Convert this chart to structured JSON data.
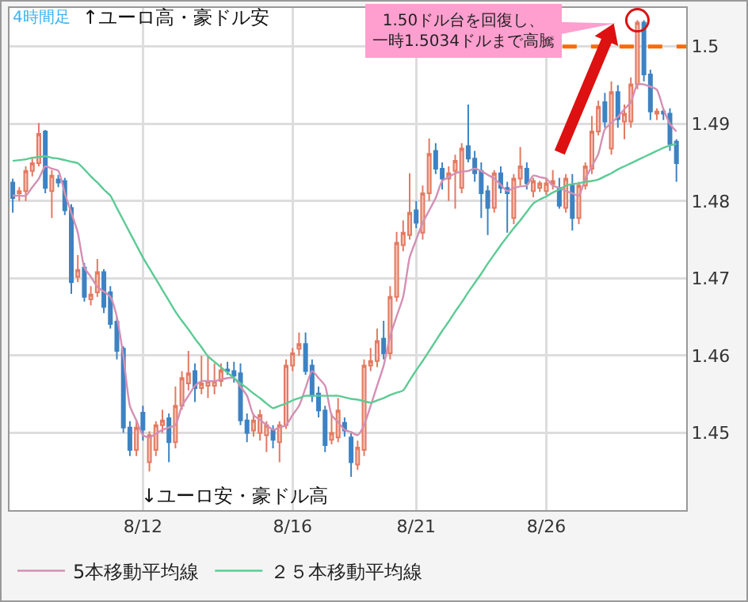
{
  "chart_data": {
    "type": "candlestick",
    "categories": [
      null,
      null,
      null,
      null,
      null,
      null,
      null,
      null,
      null,
      null,
      null,
      null,
      null,
      null,
      null,
      null,
      null,
      null,
      null,
      null,
      "8/12",
      null,
      null,
      null,
      null,
      null,
      null,
      null,
      null,
      null,
      null,
      null,
      null,
      null,
      null,
      null,
      null,
      null,
      null,
      null,
      null,
      null,
      null,
      "8/16",
      null,
      null,
      null,
      null,
      null,
      null,
      null,
      null,
      null,
      null,
      null,
      null,
      null,
      null,
      null,
      null,
      null,
      null,
      "8/21",
      null,
      null,
      null,
      null,
      null,
      null,
      null,
      null,
      null,
      null,
      null,
      null,
      null,
      null,
      null,
      null,
      null,
      null,
      null,
      "8/26",
      null,
      null,
      null,
      null,
      null,
      null,
      null,
      null,
      null,
      null,
      null,
      null,
      null,
      null,
      null,
      null,
      null,
      null,
      null,
      null
    ],
    "ohlc": [
      [
        1.4824,
        1.4829,
        1.4785,
        1.4804
      ],
      [
        1.481,
        1.4818,
        1.48,
        1.4813
      ],
      [
        1.4813,
        1.4845,
        1.48,
        1.4839
      ],
      [
        1.4839,
        1.4855,
        1.4832,
        1.4849
      ],
      [
        1.4849,
        1.4901,
        1.4845,
        1.4887
      ],
      [
        1.489,
        1.4892,
        1.481,
        1.4817
      ],
      [
        1.4813,
        1.484,
        1.4778,
        1.4833
      ],
      [
        1.4828,
        1.4834,
        1.4818,
        1.4824
      ],
      [
        1.4826,
        1.483,
        1.4782,
        1.4788
      ],
      [
        1.4791,
        1.4796,
        1.468,
        1.4695
      ],
      [
        1.4702,
        1.473,
        1.4695,
        1.4711
      ],
      [
        1.4714,
        1.472,
        1.467,
        1.4676
      ],
      [
        1.4673,
        1.469,
        1.4665,
        1.4679
      ],
      [
        1.4682,
        1.4725,
        1.4676,
        1.4708
      ],
      [
        1.4708,
        1.4712,
        1.4655,
        1.4663
      ],
      [
        1.4682,
        1.469,
        1.4635,
        1.4641
      ],
      [
        1.4644,
        1.465,
        1.4595,
        1.4606
      ],
      [
        1.4609,
        1.4612,
        1.45,
        1.4507
      ],
      [
        1.4507,
        1.4515,
        1.447,
        1.4478
      ],
      [
        1.4478,
        1.4515,
        1.447,
        1.4507
      ],
      [
        1.4526,
        1.4535,
        1.449,
        1.4504
      ],
      [
        1.4462,
        1.4502,
        1.445,
        1.4497
      ],
      [
        1.4478,
        1.4515,
        1.447,
        1.451
      ],
      [
        1.451,
        1.453,
        1.45,
        1.4516
      ],
      [
        1.4519,
        1.4525,
        1.4462,
        1.4488
      ],
      [
        1.4488,
        1.456,
        1.448,
        1.4535
      ],
      [
        1.4535,
        1.458,
        1.453,
        1.4571
      ],
      [
        1.4564,
        1.4606,
        1.4555,
        1.4577
      ],
      [
        1.458,
        1.459,
        1.454,
        1.4558
      ],
      [
        1.4558,
        1.46,
        1.455,
        1.4564
      ],
      [
        1.4561,
        1.46,
        1.4545,
        1.4567
      ],
      [
        1.4561,
        1.459,
        1.455,
        1.4567
      ],
      [
        1.4567,
        1.459,
        1.456,
        1.4581
      ],
      [
        1.4582,
        1.4592,
        1.4575,
        1.458
      ],
      [
        1.458,
        1.4592,
        1.4565,
        1.4574
      ],
      [
        1.4577,
        1.459,
        1.451,
        1.4516
      ],
      [
        1.4516,
        1.4525,
        1.4488,
        1.45
      ],
      [
        1.4503,
        1.4525,
        1.4495,
        1.4516
      ],
      [
        1.45,
        1.453,
        1.449,
        1.4523
      ],
      [
        1.4497,
        1.4515,
        1.4475,
        1.451
      ],
      [
        1.4504,
        1.451,
        1.448,
        1.4491
      ],
      [
        1.4488,
        1.4515,
        1.4462,
        1.451
      ],
      [
        1.451,
        1.4595,
        1.4505,
        1.4587
      ],
      [
        1.4587,
        1.461,
        1.458,
        1.4603
      ],
      [
        1.4609,
        1.463,
        1.46,
        1.4615
      ],
      [
        1.4615,
        1.463,
        1.4575,
        1.458
      ],
      [
        1.4587,
        1.4595,
        1.454,
        1.4548
      ],
      [
        1.4551,
        1.456,
        1.452,
        1.4529
      ],
      [
        1.4529,
        1.4535,
        1.4475,
        1.4484
      ],
      [
        1.4491,
        1.4525,
        1.4485,
        1.45
      ],
      [
        1.4494,
        1.4545,
        1.4488,
        1.4529
      ],
      [
        1.4513,
        1.452,
        1.4495,
        1.4503
      ],
      [
        1.4494,
        1.45,
        1.4443,
        1.4462
      ],
      [
        1.4459,
        1.449,
        1.4452,
        1.4481
      ],
      [
        1.4478,
        1.4595,
        1.447,
        1.4587
      ],
      [
        1.4587,
        1.461,
        1.458,
        1.4593
      ],
      [
        1.4593,
        1.4635,
        1.4585,
        1.4619
      ],
      [
        1.4622,
        1.4645,
        1.4595,
        1.4603
      ],
      [
        1.4603,
        1.469,
        1.4595,
        1.4676
      ],
      [
        1.4676,
        1.476,
        1.467,
        1.4746
      ],
      [
        1.4743,
        1.4775,
        1.4735,
        1.4759
      ],
      [
        1.4756,
        1.4836,
        1.475,
        1.4785
      ],
      [
        1.4788,
        1.48,
        1.4765,
        1.4772
      ],
      [
        1.4759,
        1.482,
        1.475,
        1.481
      ],
      [
        1.481,
        1.4881,
        1.48,
        1.4861
      ],
      [
        1.4865,
        1.4875,
        1.4835,
        1.4842
      ],
      [
        1.4842,
        1.485,
        1.4815,
        1.4829
      ],
      [
        1.4829,
        1.4845,
        1.48,
        1.4836
      ],
      [
        1.4839,
        1.486,
        1.479,
        1.4852
      ],
      [
        1.4817,
        1.4875,
        1.481,
        1.4868
      ],
      [
        1.4871,
        1.4925,
        1.485,
        1.4855
      ],
      [
        1.4855,
        1.4865,
        1.4825,
        1.4836
      ],
      [
        1.4839,
        1.485,
        1.4778,
        1.481
      ],
      [
        1.4813,
        1.482,
        1.4756,
        1.4791
      ],
      [
        1.4791,
        1.484,
        1.4785,
        1.4836
      ],
      [
        1.4836,
        1.4845,
        1.481,
        1.4817
      ],
      [
        1.4817,
        1.4825,
        1.4759,
        1.481
      ],
      [
        1.4778,
        1.4835,
        1.477,
        1.4829
      ],
      [
        1.4829,
        1.487,
        1.482,
        1.4845
      ],
      [
        1.4842,
        1.485,
        1.4815,
        1.4823
      ],
      [
        1.4813,
        1.483,
        1.4805,
        1.4826
      ],
      [
        1.4817,
        1.4826,
        1.4812,
        1.4823
      ],
      [
        1.4813,
        1.483,
        1.4808,
        1.4823
      ],
      [
        1.4822,
        1.484,
        1.4815,
        1.4826
      ],
      [
        1.4817,
        1.483,
        1.479,
        1.4794
      ],
      [
        1.4791,
        1.4835,
        1.4785,
        1.4829
      ],
      [
        1.482,
        1.4835,
        1.4762,
        1.4778
      ],
      [
        1.4778,
        1.4825,
        1.477,
        1.482
      ],
      [
        1.482,
        1.485,
        1.4815,
        1.4845
      ],
      [
        1.4842,
        1.491,
        1.4835,
        1.489
      ],
      [
        1.489,
        1.493,
        1.4885,
        1.4922
      ],
      [
        1.4928,
        1.494,
        1.4895,
        1.4903
      ],
      [
        1.4868,
        1.4955,
        1.486,
        1.4941
      ],
      [
        1.4941,
        1.495,
        1.4895,
        1.4906
      ],
      [
        1.4903,
        1.4925,
        1.488,
        1.4913
      ],
      [
        1.4903,
        1.496,
        1.4895,
        1.4951
      ],
      [
        1.4951,
        1.5034,
        1.4945,
        1.5031
      ],
      [
        1.5031,
        1.5034,
        1.4955,
        1.4964
      ],
      [
        1.4964,
        1.497,
        1.4905,
        1.4916
      ],
      [
        1.4913,
        1.492,
        1.4905,
        1.4916
      ],
      [
        1.4916,
        1.492,
        1.4905,
        1.4913
      ],
      [
        1.4913,
        1.492,
        1.4865,
        1.4874
      ],
      [
        1.4877,
        1.488,
        1.4825,
        1.4849
      ]
    ],
    "series": [
      {
        "type": "line",
        "name": "5本移動平均線",
        "color": "#d48fb4",
        "values": [
          1.4807,
          1.4807,
          1.4807,
          1.4818,
          1.4829,
          1.4845,
          1.4842,
          1.4839,
          1.481,
          1.4785,
          1.4759,
          1.4714,
          1.4702,
          1.4689,
          1.4683,
          1.4676,
          1.465,
          1.4599,
          1.4535,
          1.4516,
          1.4497,
          1.4494,
          1.4499,
          1.4504,
          1.4507,
          1.451,
          1.4535,
          1.4548,
          1.4561,
          1.4567,
          1.4567,
          1.4567,
          1.4569,
          1.4571,
          1.4571,
          1.456,
          1.4548,
          1.4523,
          1.4517,
          1.451,
          1.4504,
          1.4507,
          1.451,
          1.4523,
          1.4535,
          1.4558,
          1.458,
          1.4571,
          1.4561,
          1.4523,
          1.4514,
          1.4504,
          1.4501,
          1.4497,
          1.451,
          1.4535,
          1.4561,
          1.4587,
          1.4625,
          1.4651,
          1.4676,
          1.4727,
          1.475,
          1.4772,
          1.4788,
          1.4804,
          1.4826,
          1.4831,
          1.4836,
          1.4838,
          1.4839,
          1.4842,
          1.4839,
          1.4834,
          1.4829,
          1.4821,
          1.4813,
          1.4817,
          1.4819,
          1.482,
          1.4833,
          1.4831,
          1.4829,
          1.482,
          1.4817,
          1.4813,
          1.481,
          1.4807,
          1.4829,
          1.4845,
          1.4861,
          1.4893,
          1.4901,
          1.4909,
          1.4919,
          1.4928,
          1.4951,
          1.4951,
          1.4948,
          1.4944,
          1.4919,
          1.49,
          1.489
        ]
      },
      {
        "type": "line",
        "name": "２５本移動平均線",
        "color": "#5ccb94",
        "values": [
          1.4852,
          1.4853,
          1.4854,
          1.4856,
          1.4857,
          1.4858,
          1.4856,
          1.4855,
          1.4853,
          1.4851,
          1.4849,
          1.4841,
          1.4832,
          1.4824,
          1.4815,
          1.4807,
          1.4791,
          1.4775,
          1.4759,
          1.4743,
          1.4727,
          1.4713,
          1.4699,
          1.4685,
          1.4671,
          1.4657,
          1.4645,
          1.4634,
          1.4622,
          1.4611,
          1.4599,
          1.4592,
          1.4585,
          1.4578,
          1.4571,
          1.4564,
          1.4558,
          1.4551,
          1.4545,
          1.4538,
          1.4532,
          1.4535,
          1.4538,
          1.4542,
          1.4545,
          1.4548,
          1.4548,
          1.4548,
          1.4548,
          1.4548,
          1.4548,
          1.4546,
          1.4544,
          1.4543,
          1.4541,
          1.4539,
          1.4542,
          1.4545,
          1.4549,
          1.4552,
          1.4555,
          1.4568,
          1.4581,
          1.4593,
          1.4606,
          1.4619,
          1.4632,
          1.4644,
          1.4657,
          1.4669,
          1.4682,
          1.4694,
          1.4706,
          1.4719,
          1.4731,
          1.4743,
          1.4754,
          1.4765,
          1.4775,
          1.4786,
          1.4797,
          1.4802,
          1.4806,
          1.4811,
          1.4815,
          1.482,
          1.4822,
          1.4823,
          1.4825,
          1.4826,
          1.4828,
          1.4832,
          1.4836,
          1.4841,
          1.4845,
          1.4849,
          1.4853,
          1.4857,
          1.4861,
          1.4865,
          1.4869,
          1.4872,
          1.4874
        ]
      }
    ],
    "ylim": [
      1.44,
      1.505
    ],
    "yticks": [
      1.45,
      1.46,
      1.47,
      1.48,
      1.49,
      1.5
    ],
    "ref_lines": [
      {
        "axis": "y",
        "value": 1.5,
        "color": "#ff6a00",
        "line_style": "dashed"
      }
    ],
    "annotations": [
      "4時間足",
      "↑ユーロ高・豪ドル安",
      "↓ユーロ安・豪ドル高",
      "1.50ドル台を回復し、一時1.5034ドルまで高騰"
    ],
    "grid": true,
    "legend": "bottom"
  }
}
